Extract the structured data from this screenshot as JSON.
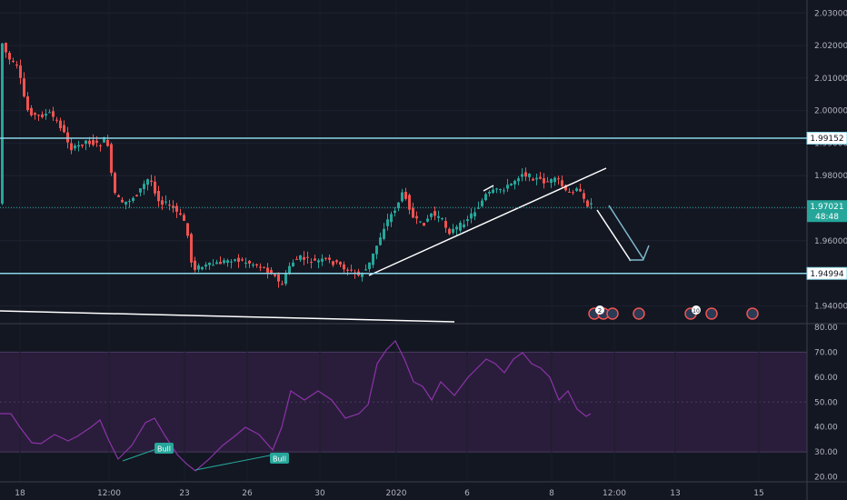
{
  "chart_data": {
    "type": "candlestick",
    "price_axis": {
      "ylim": [
        1.9345,
        2.034
      ],
      "ticks": [
        "2.03000",
        "2.02000",
        "2.01000",
        "2.00000",
        "1.99000",
        "1.98000",
        "1.97000",
        "1.96000",
        "1.95000",
        "1.94000"
      ],
      "tick_values": [
        2.03,
        2.02,
        2.01,
        2.0,
        1.99,
        1.98,
        1.97,
        1.96,
        1.95,
        1.94
      ]
    },
    "horizontal_levels": [
      {
        "value": 1.99152,
        "label": "1.99152"
      },
      {
        "value": 1.94994,
        "label": "1.94994"
      }
    ],
    "last_price": {
      "value": 1.97021,
      "label": "1.97021",
      "countdown": "48:48"
    },
    "rsi_axis": {
      "ylim": [
        18,
        80
      ],
      "ticks": [
        "80.00",
        "70.00",
        "60.00",
        "50.00",
        "40.00",
        "30.00",
        "20.00"
      ],
      "tick_values": [
        80,
        70,
        60,
        50,
        40,
        30,
        20
      ],
      "band": [
        30,
        70
      ]
    },
    "time_axis": {
      "labels": [
        "18",
        "12:00",
        "23",
        "26",
        "30",
        "2020",
        "6",
        "8",
        "12:00",
        "13",
        "15"
      ]
    },
    "signals": [
      "Bull",
      "Bull"
    ],
    "event_badges": [
      "2",
      "10"
    ],
    "colors": {
      "background": "#131722",
      "up": "#26a69a",
      "down": "#ef5350",
      "level_line": "#89d5e6",
      "trendline": "#ffffff",
      "projection": "#7fb8cc",
      "rsi_line": "#8b33a8",
      "rsi_band": "#2a1d3b",
      "bull_label": "#26a69a"
    }
  }
}
